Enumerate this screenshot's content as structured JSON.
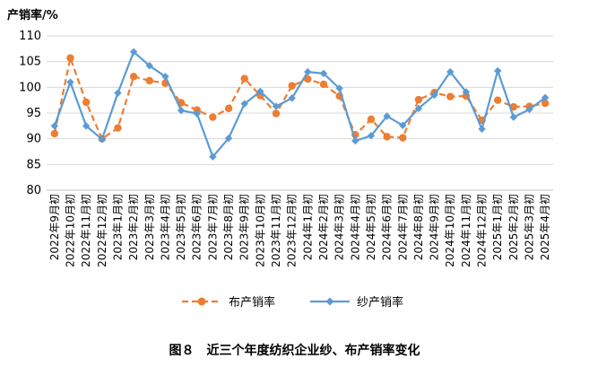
{
  "chart_data": {
    "type": "line",
    "title": "",
    "ylabel": "产销率/%",
    "xlabel": "",
    "ylim": [
      80,
      110
    ],
    "yticks": [
      80,
      85,
      90,
      95,
      100,
      105,
      110
    ],
    "grid": "horizontal",
    "legend_position": "bottom",
    "categories": [
      "2022年9月初",
      "2022年10月初",
      "2022年11月初",
      "2022年12月初",
      "2023年1月初",
      "2023年2月初",
      "2023年3月初",
      "2023年4月初",
      "2023年5月初",
      "2023年6月初",
      "2023年7月初",
      "2023年8月初",
      "2023年9月初",
      "2023年10月初",
      "2023年11月初",
      "2023年12月初",
      "2024年1月初",
      "2024年2月初",
      "2024年3月初",
      "2024年4月初",
      "2024年5月初",
      "2024年6月初",
      "2024年7月初",
      "2024年8月初",
      "2024年9月初",
      "2024年10月初",
      "2024年11月初",
      "2024年12月初",
      "2025年1月初",
      "2025年2月初",
      "2025年3月初",
      "2025年4月初"
    ],
    "series": [
      {
        "name": "布产销率",
        "color": "#ED7D31",
        "style": "dashed",
        "marker": "circle",
        "values": [
          91.0,
          105.7,
          97.1,
          90.0,
          92.1,
          102.1,
          101.3,
          100.8,
          97.0,
          95.6,
          94.2,
          95.9,
          101.7,
          98.4,
          94.9,
          100.3,
          101.6,
          100.6,
          98.3,
          90.8,
          93.8,
          90.4,
          90.2,
          97.6,
          99.0,
          98.2,
          98.3,
          93.6,
          97.5,
          96.2,
          96.3,
          96.9
        ]
      },
      {
        "name": "纱产销率",
        "color": "#5B9BD5",
        "style": "solid",
        "marker": "diamond",
        "values": [
          92.5,
          101.0,
          92.5,
          89.9,
          98.9,
          106.9,
          104.2,
          102.1,
          95.5,
          94.9,
          86.5,
          90.1,
          96.8,
          99.2,
          96.3,
          97.9,
          103.0,
          102.7,
          99.8,
          89.6,
          90.6,
          94.4,
          92.6,
          95.9,
          98.5,
          103.0,
          99.1,
          91.9,
          103.2,
          94.2,
          95.7,
          98.0
        ]
      }
    ]
  },
  "caption": "图８　近三个年度纺织企业纱、布产销率变化"
}
